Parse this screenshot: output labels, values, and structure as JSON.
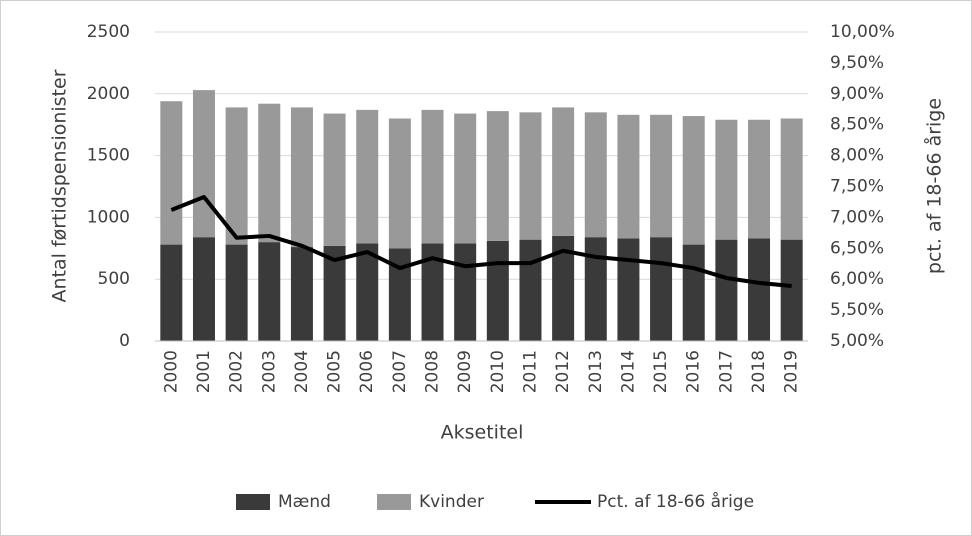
{
  "chart_data": {
    "type": "bar",
    "categories": [
      "2000",
      "2001",
      "2002",
      "2003",
      "2004",
      "2005",
      "2006",
      "2007",
      "2008",
      "2009",
      "2010",
      "2011",
      "2012",
      "2013",
      "2014",
      "2015",
      "2016",
      "2017",
      "2018",
      "2019"
    ],
    "series": [
      {
        "name": "Mænd",
        "color": "#3a3a3a",
        "values": [
          780,
          840,
          780,
          800,
          760,
          770,
          790,
          750,
          790,
          790,
          810,
          820,
          850,
          840,
          830,
          840,
          780,
          820,
          830,
          820
        ]
      },
      {
        "name": "Kvinder",
        "color": "#999999",
        "values": [
          1160,
          1190,
          1110,
          1120,
          1130,
          1070,
          1080,
          1050,
          1080,
          1050,
          1050,
          1030,
          1040,
          1010,
          1000,
          990,
          1040,
          970,
          960,
          980
        ]
      },
      {
        "name": "Pct. af 18-66 årige",
        "color": "#000000",
        "type": "line",
        "axis": "y2",
        "values": [
          7.12,
          7.33,
          6.67,
          6.7,
          6.54,
          6.31,
          6.44,
          6.18,
          6.34,
          6.21,
          6.26,
          6.26,
          6.46,
          6.36,
          6.31,
          6.26,
          6.18,
          6.02,
          5.94,
          5.89
        ]
      }
    ],
    "stacked": true,
    "xlabel": "Aksetitel",
    "ylabel": "Antal førtidspensionister",
    "y2label": "pct. af 18-66 årige",
    "ylim": [
      0,
      2500
    ],
    "yticks": [
      0,
      500,
      1000,
      1500,
      2000,
      2500
    ],
    "y2lim": [
      5,
      10
    ],
    "y2ticks": [
      {
        "value": 5,
        "label": "5,00%"
      },
      {
        "value": 5.5,
        "label": "5,50%"
      },
      {
        "value": 6,
        "label": "6,00%"
      },
      {
        "value": 6.5,
        "label": "6,50%"
      },
      {
        "value": 7,
        "label": "7,00%"
      },
      {
        "value": 7.5,
        "label": "7,50%"
      },
      {
        "value": 8,
        "label": "8,00%"
      },
      {
        "value": 8.5,
        "label": "8,50%"
      },
      {
        "value": 9,
        "label": "9,00%"
      },
      {
        "value": 9.5,
        "label": "9,50%"
      },
      {
        "value": 10,
        "label": "10,00%"
      }
    ],
    "grid": true,
    "legend": "bottom"
  }
}
